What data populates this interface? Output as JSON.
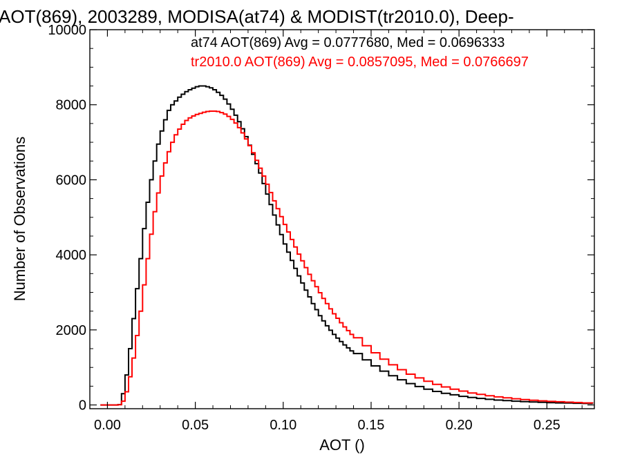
{
  "chart_data": {
    "type": "line",
    "title": "AOT(869), 2003289, MODISA(at74) & MODIST(tr2010.0), Deep-",
    "xlabel": "AOT ()",
    "ylabel": "Number of Observations",
    "xlim": [
      -0.01,
      0.277
    ],
    "ylim": [
      -100,
      10000
    ],
    "xticks": [
      0.0,
      0.05,
      0.1,
      0.15,
      0.2,
      0.25
    ],
    "xtick_labels": [
      "0.00",
      "0.05",
      "0.10",
      "0.15",
      "0.20",
      "0.25"
    ],
    "yticks": [
      0,
      2000,
      4000,
      6000,
      8000,
      10000
    ],
    "ytick_labels": [
      "0",
      "2000",
      "4000",
      "6000",
      "8000",
      "10000"
    ],
    "series": [
      {
        "name": "at74",
        "annotation": "at74 AOT(869) Avg = 0.0777680, Med = 0.0696333",
        "color": "#000000",
        "x": [
          -0.004,
          0.0,
          0.004,
          0.006,
          0.008,
          0.01,
          0.012,
          0.014,
          0.016,
          0.018,
          0.02,
          0.022,
          0.024,
          0.026,
          0.028,
          0.03,
          0.032,
          0.034,
          0.036,
          0.038,
          0.04,
          0.042,
          0.044,
          0.046,
          0.048,
          0.05,
          0.052,
          0.054,
          0.056,
          0.058,
          0.06,
          0.062,
          0.064,
          0.066,
          0.068,
          0.07,
          0.072,
          0.074,
          0.076,
          0.078,
          0.08,
          0.082,
          0.084,
          0.086,
          0.088,
          0.09,
          0.092,
          0.094,
          0.096,
          0.098,
          0.1,
          0.102,
          0.104,
          0.106,
          0.108,
          0.11,
          0.112,
          0.114,
          0.116,
          0.118,
          0.12,
          0.122,
          0.124,
          0.126,
          0.128,
          0.13,
          0.132,
          0.134,
          0.136,
          0.138,
          0.14,
          0.145,
          0.15,
          0.155,
          0.16,
          0.165,
          0.17,
          0.175,
          0.18,
          0.185,
          0.19,
          0.195,
          0.2,
          0.205,
          0.21,
          0.215,
          0.22,
          0.225,
          0.23,
          0.235,
          0.24,
          0.245,
          0.25,
          0.255,
          0.26,
          0.265,
          0.27,
          0.276
        ],
        "y": [
          0,
          0,
          0,
          10,
          300,
          800,
          1500,
          2300,
          3100,
          3900,
          4700,
          5400,
          6000,
          6500,
          6950,
          7300,
          7600,
          7850,
          8000,
          8100,
          8200,
          8280,
          8350,
          8400,
          8440,
          8480,
          8500,
          8500,
          8480,
          8450,
          8400,
          8330,
          8250,
          8150,
          8020,
          7880,
          7720,
          7550,
          7360,
          7150,
          6920,
          6680,
          6430,
          6180,
          5900,
          5620,
          5340,
          5060,
          4800,
          4540,
          4290,
          4070,
          3850,
          3640,
          3440,
          3250,
          3060,
          2880,
          2700,
          2540,
          2380,
          2240,
          2110,
          1990,
          1880,
          1780,
          1690,
          1600,
          1520,
          1440,
          1370,
          1200,
          1040,
          900,
          780,
          670,
          570,
          490,
          420,
          360,
          310,
          270,
          230,
          200,
          175,
          150,
          130,
          115,
          100,
          90,
          80,
          70,
          60,
          55,
          50,
          45,
          40,
          35
        ]
      },
      {
        "name": "tr2010.0",
        "annotation": "tr2010.0 AOT(869) Avg = 0.0857095, Med = 0.0766697",
        "color": "#ff0000",
        "x": [
          -0.004,
          0.0,
          0.004,
          0.006,
          0.008,
          0.01,
          0.012,
          0.014,
          0.016,
          0.018,
          0.02,
          0.022,
          0.024,
          0.026,
          0.028,
          0.03,
          0.032,
          0.034,
          0.036,
          0.038,
          0.04,
          0.042,
          0.044,
          0.046,
          0.048,
          0.05,
          0.052,
          0.054,
          0.056,
          0.058,
          0.06,
          0.062,
          0.064,
          0.066,
          0.068,
          0.07,
          0.072,
          0.074,
          0.076,
          0.078,
          0.08,
          0.082,
          0.084,
          0.086,
          0.088,
          0.09,
          0.092,
          0.094,
          0.096,
          0.098,
          0.1,
          0.102,
          0.104,
          0.106,
          0.108,
          0.11,
          0.112,
          0.114,
          0.116,
          0.118,
          0.12,
          0.122,
          0.124,
          0.126,
          0.128,
          0.13,
          0.132,
          0.134,
          0.136,
          0.138,
          0.14,
          0.145,
          0.15,
          0.155,
          0.16,
          0.165,
          0.17,
          0.175,
          0.18,
          0.185,
          0.19,
          0.195,
          0.2,
          0.205,
          0.21,
          0.215,
          0.22,
          0.225,
          0.23,
          0.235,
          0.24,
          0.245,
          0.25,
          0.255,
          0.26,
          0.265,
          0.27,
          0.276
        ],
        "y": [
          0,
          0,
          0,
          5,
          100,
          350,
          750,
          1250,
          1850,
          2500,
          3200,
          3900,
          4550,
          5150,
          5650,
          6100,
          6450,
          6750,
          7000,
          7200,
          7350,
          7480,
          7580,
          7650,
          7700,
          7740,
          7770,
          7800,
          7820,
          7830,
          7830,
          7820,
          7790,
          7750,
          7690,
          7610,
          7510,
          7390,
          7250,
          7090,
          6910,
          6720,
          6520,
          6310,
          6100,
          5880,
          5660,
          5440,
          5230,
          5020,
          4810,
          4610,
          4410,
          4210,
          4020,
          3840,
          3660,
          3480,
          3310,
          3150,
          2990,
          2840,
          2700,
          2560,
          2430,
          2310,
          2190,
          2080,
          1980,
          1880,
          1790,
          1580,
          1390,
          1220,
          1070,
          940,
          820,
          720,
          630,
          550,
          480,
          420,
          370,
          320,
          280,
          245,
          215,
          190,
          165,
          145,
          125,
          110,
          95,
          85,
          75,
          65,
          55,
          45
        ]
      }
    ]
  }
}
